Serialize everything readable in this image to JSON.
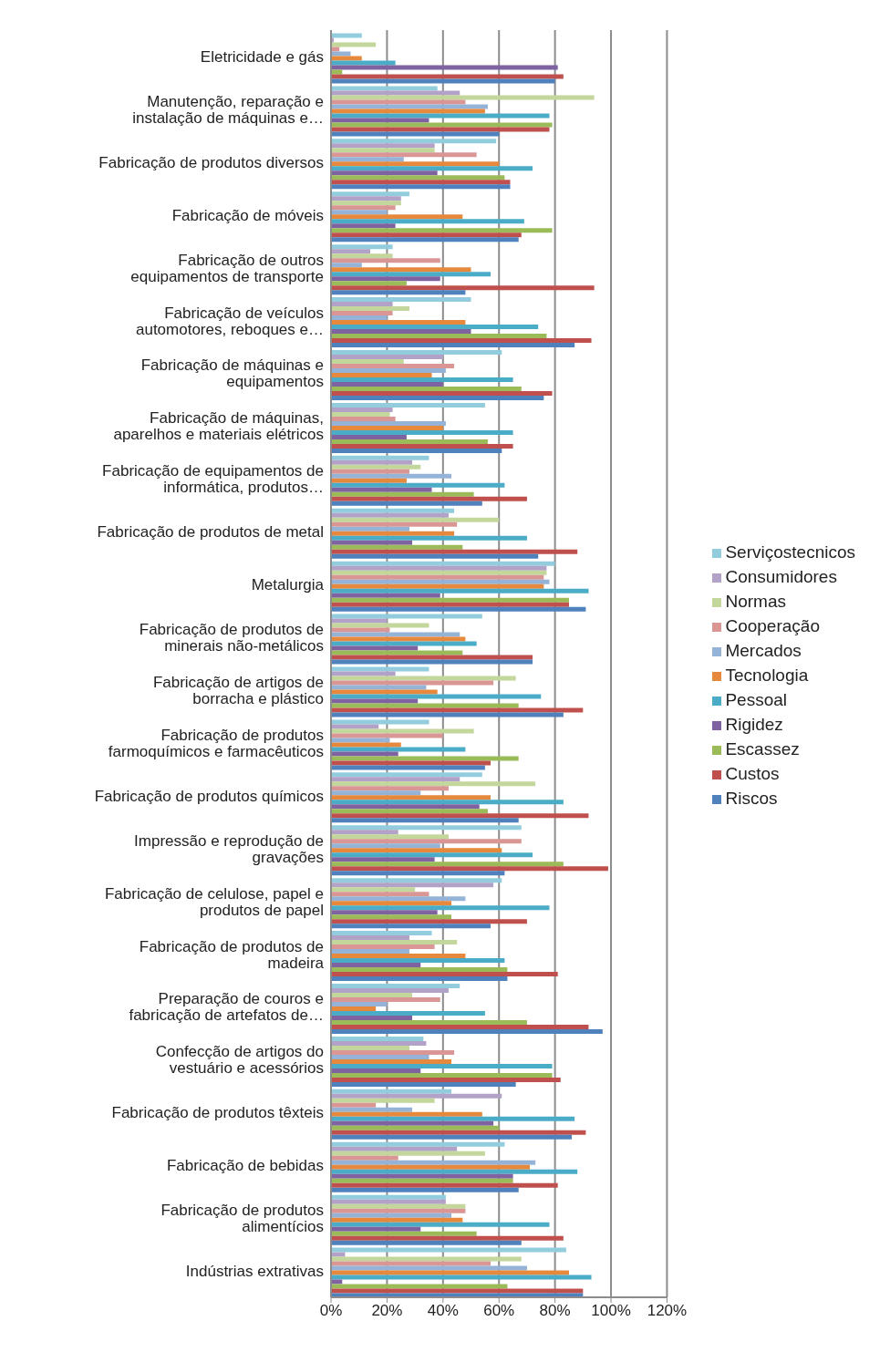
{
  "chart_data": {
    "type": "bar",
    "orientation": "horizontal",
    "categories": [
      "Eletricidade e gás",
      "Manutenção, reparação e instalação de máquinas e…",
      "Fabricação de produtos diversos",
      "Fabricação de móveis",
      "Fabricação de outros equipamentos de transporte",
      "Fabricação de veículos automotores, reboques e…",
      "Fabricação de máquinas e equipamentos",
      "Fabricação de máquinas, aparelhos e materiais elétricos",
      "Fabricação de equipamentos de informática, produtos…",
      "Fabricação de produtos de metal",
      "Metalurgia",
      "Fabricação de produtos de minerais não-metálicos",
      "Fabricação de artigos de borracha e plástico",
      "Fabricação de produtos farmoquímicos e farmacêuticos",
      "Fabricação de produtos químicos",
      "Impressão e reprodução de gravações",
      "Fabricação de celulose, papel e produtos de papel",
      "Fabricação de produtos de madeira",
      "Preparação de couros e fabricação de artefatos de…",
      "Confecção de artigos do vestuário e acessórios",
      "Fabricação de produtos têxteis",
      "Fabricação de bebidas",
      "Fabricação de produtos alimentícios",
      "Indústrias extrativas"
    ],
    "series": [
      {
        "name": "Serviçostecnicos",
        "color": "#93cddd",
        "values": [
          11,
          38,
          59,
          28,
          22,
          50,
          61,
          55,
          35,
          44,
          80,
          54,
          35,
          35,
          54,
          68,
          61,
          36,
          46,
          33,
          43,
          62,
          41,
          84
        ]
      },
      {
        "name": "Consumidores",
        "color": "#b3a2c7",
        "values": [
          1,
          46,
          37,
          25,
          14,
          22,
          40,
          22,
          29,
          42,
          77,
          20,
          23,
          17,
          46,
          24,
          58,
          28,
          42,
          34,
          61,
          45,
          41,
          5
        ]
      },
      {
        "name": "Normas",
        "color": "#c3d69b",
        "values": [
          16,
          94,
          37,
          25,
          22,
          28,
          26,
          21,
          32,
          60,
          77,
          35,
          66,
          51,
          73,
          42,
          30,
          45,
          29,
          28,
          37,
          55,
          48,
          68
        ]
      },
      {
        "name": "Cooperação",
        "color": "#d99694",
        "values": [
          3,
          48,
          52,
          23,
          39,
          22,
          44,
          23,
          28,
          45,
          76,
          21,
          58,
          40,
          42,
          68,
          35,
          37,
          39,
          44,
          16,
          24,
          48,
          57
        ]
      },
      {
        "name": "Mercados",
        "color": "#95b3d7",
        "values": [
          7,
          56,
          26,
          20,
          11,
          20,
          41,
          41,
          43,
          28,
          78,
          46,
          34,
          21,
          32,
          39,
          48,
          28,
          20,
          35,
          29,
          73,
          43,
          70
        ]
      },
      {
        "name": "Tecnologia",
        "color": "#e6893d",
        "values": [
          11,
          55,
          60,
          47,
          50,
          48,
          36,
          40,
          27,
          44,
          76,
          48,
          38,
          25,
          57,
          61,
          43,
          48,
          16,
          43,
          54,
          71,
          47,
          85
        ]
      },
      {
        "name": "Pessoal",
        "color": "#4aacc6",
        "values": [
          23,
          78,
          72,
          69,
          57,
          74,
          65,
          65,
          62,
          70,
          92,
          52,
          75,
          48,
          83,
          72,
          78,
          62,
          55,
          79,
          87,
          88,
          78,
          93
        ]
      },
      {
        "name": "Rigidez",
        "color": "#7f63a1",
        "values": [
          81,
          35,
          38,
          23,
          39,
          50,
          40,
          27,
          36,
          29,
          39,
          31,
          31,
          24,
          53,
          37,
          38,
          32,
          29,
          32,
          58,
          65,
          32,
          4
        ]
      },
      {
        "name": "Escassez",
        "color": "#9bbb59",
        "values": [
          4,
          79,
          62,
          79,
          27,
          77,
          68,
          56,
          51,
          47,
          85,
          47,
          67,
          67,
          56,
          83,
          43,
          63,
          70,
          79,
          60,
          65,
          52,
          63
        ]
      },
      {
        "name": "Custos",
        "color": "#c0504d",
        "values": [
          83,
          78,
          64,
          68,
          94,
          93,
          79,
          65,
          70,
          88,
          85,
          72,
          90,
          57,
          92,
          99,
          70,
          81,
          92,
          82,
          91,
          81,
          83,
          90
        ]
      },
      {
        "name": "Riscos",
        "color": "#4f81bd",
        "values": [
          80,
          60,
          64,
          67,
          48,
          87,
          76,
          61,
          54,
          74,
          91,
          72,
          83,
          55,
          67,
          62,
          57,
          63,
          97,
          66,
          86,
          67,
          68,
          90
        ]
      }
    ],
    "xlim": [
      0,
      120
    ],
    "xticks": [
      {
        "value": 0,
        "label": "0%"
      },
      {
        "value": 20,
        "label": "20%"
      },
      {
        "value": 40,
        "label": "40%"
      },
      {
        "value": 60,
        "label": "60%"
      },
      {
        "value": 80,
        "label": "80%"
      },
      {
        "value": 100,
        "label": "100%"
      },
      {
        "value": 120,
        "label": "120%"
      }
    ],
    "grid": "x",
    "legend": "right"
  }
}
